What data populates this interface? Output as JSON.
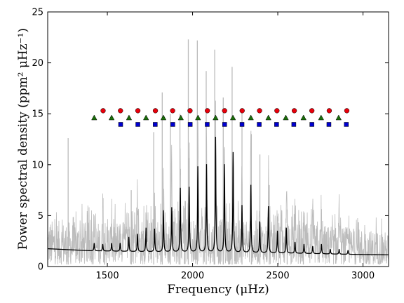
{
  "chart_data": {
    "type": "line",
    "xlabel": "Frequency (μHz)",
    "ylabel": "Power spectral density (ppm² μHz⁻¹)",
    "xlim": [
      1150,
      3150
    ],
    "ylim": [
      0,
      25
    ],
    "xticks": [
      1500,
      2000,
      2500,
      3000
    ],
    "yticks": [
      0,
      5,
      10,
      15,
      20,
      25
    ],
    "grid": false,
    "colors": {
      "spectrum": "#bbbbbb",
      "smoothed": "#000000",
      "circles": "#e8000b",
      "triangles": "#1a6e0a",
      "squares": "#0000d0"
    },
    "spectrum_envelope": {
      "x": [
        1150,
        1300,
        1500,
        1700,
        1900,
        2100,
        2300,
        2500,
        2700,
        2900,
        3150
      ],
      "max": [
        4.6,
        4.4,
        4.4,
        4.6,
        4.7,
        4.7,
        4.6,
        4.4,
        4.2,
        3.9,
        3.4
      ],
      "min": [
        0.2,
        0.2,
        0.2,
        0.2,
        0.2,
        0.2,
        0.2,
        0.2,
        0.2,
        0.2,
        0.2
      ]
    },
    "spectrum_spikes": [
      {
        "x": 1270,
        "y": 12.6
      },
      {
        "x": 1640,
        "y": 7.5
      },
      {
        "x": 1772,
        "y": 13.2
      },
      {
        "x": 1822,
        "y": 17.1
      },
      {
        "x": 1870,
        "y": 15.0
      },
      {
        "x": 1926,
        "y": 15.0
      },
      {
        "x": 1975,
        "y": 22.3
      },
      {
        "x": 2028,
        "y": 22.2
      },
      {
        "x": 2080,
        "y": 19.2
      },
      {
        "x": 2130,
        "y": 21.3
      },
      {
        "x": 2180,
        "y": 16.6
      },
      {
        "x": 2232,
        "y": 19.6
      },
      {
        "x": 2290,
        "y": 15.2
      },
      {
        "x": 2345,
        "y": 13.0
      },
      {
        "x": 2395,
        "y": 11.0
      },
      {
        "x": 2450,
        "y": 8.0
      },
      {
        "x": 2555,
        "y": 5.6
      },
      {
        "x": 2650,
        "y": 4.3
      }
    ],
    "smoothed_background": {
      "x": [
        1150,
        1400,
        1700,
        2000,
        2300,
        2600,
        2900,
        3150
      ],
      "y": [
        1.75,
        1.55,
        1.45,
        1.4,
        1.35,
        1.3,
        1.2,
        1.15
      ]
    },
    "smoothed_peaks": {
      "x": [
        1423,
        1473,
        1525,
        1575,
        1626,
        1677,
        1727,
        1777,
        1829,
        1878,
        1928,
        1980,
        2031,
        2082,
        2135,
        2187,
        2238,
        2290,
        2342,
        2394,
        2445,
        2498,
        2550,
        2601,
        2654,
        2705,
        2756,
        2808,
        2860,
        2912
      ],
      "y": [
        2.3,
        2.2,
        2.3,
        2.3,
        2.9,
        3.2,
        3.8,
        3.7,
        5.5,
        5.8,
        7.7,
        7.8,
        9.8,
        10.0,
        12.7,
        10.0,
        11.2,
        6.0,
        8.0,
        4.4,
        5.9,
        3.5,
        3.8,
        2.4,
        2.2,
        2.0,
        2.2,
        1.7,
        1.7,
        1.6
      ]
    },
    "markers": {
      "circles": {
        "y": 15.3,
        "x": [
          1475,
          1577,
          1679,
          1782,
          1883,
          1985,
          2087,
          2188,
          2291,
          2393,
          2495,
          2597,
          2700,
          2802,
          2905
        ]
      },
      "triangles": {
        "y": 14.6,
        "x": [
          1423,
          1525,
          1627,
          1727,
          1829,
          1931,
          2032,
          2135,
          2237,
          2342,
          2445,
          2547,
          2651,
          2754,
          2857
        ]
      },
      "squares": {
        "y": 13.95,
        "x": [
          1578,
          1679,
          1781,
          1884,
          1986,
          2086,
          2188,
          2290,
          2391,
          2493,
          2594,
          2700,
          2800,
          2902
        ]
      }
    }
  }
}
